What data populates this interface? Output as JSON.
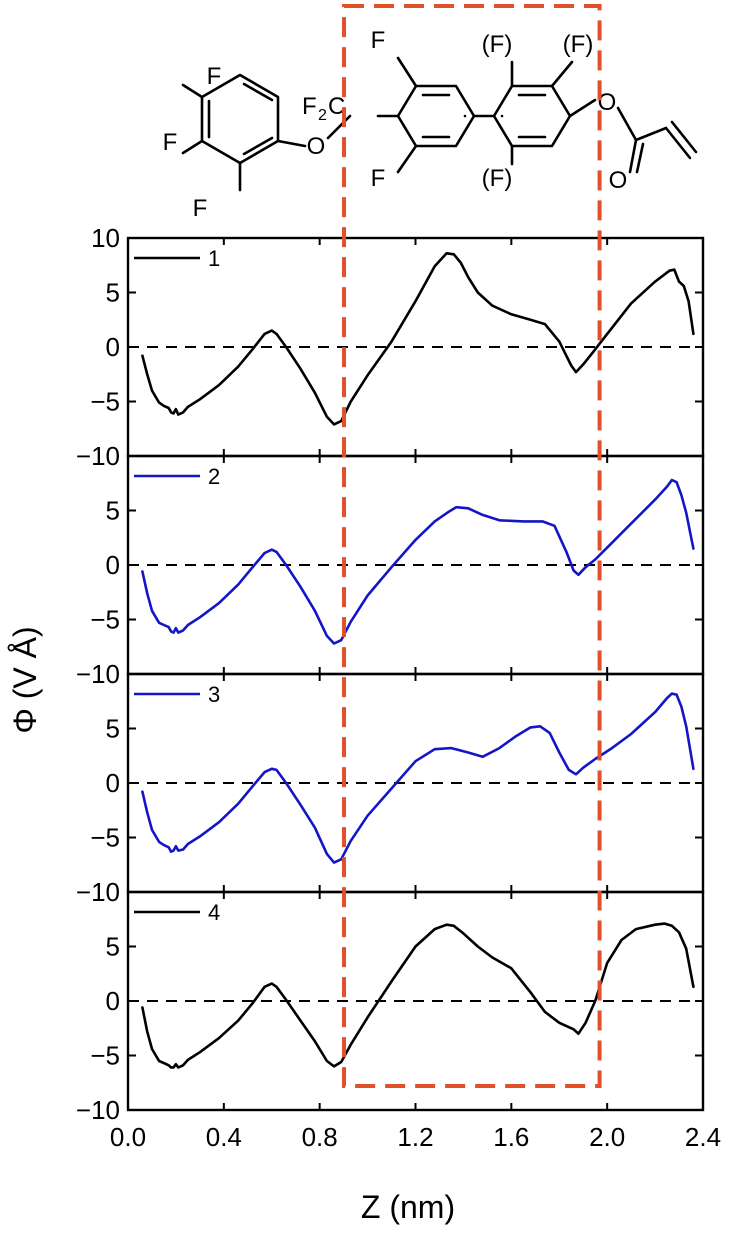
{
  "molecule": {
    "atoms": [
      "F",
      "F",
      "F",
      "O",
      "F",
      "C",
      "F",
      "F",
      "(F)",
      "(F)",
      "(F)",
      "O",
      "O"
    ]
  },
  "chart_data": {
    "type": "line",
    "xlabel": "Z (nm)",
    "ylabel": "Φ (V Å)",
    "xlim": [
      0.0,
      2.4
    ],
    "ylim": [
      -10,
      10
    ],
    "xticks": [
      "0.0",
      "0.4",
      "0.8",
      "1.2",
      "1.6",
      "2.0",
      "2.4"
    ],
    "yticks": [
      "10",
      "5",
      "0",
      "−5",
      "−10"
    ],
    "zero_line": "dashed",
    "highlight_region": {
      "x": [
        0.91,
        1.96
      ],
      "color": "#E0502A",
      "style": "dashed"
    },
    "panels": [
      {
        "label": "1",
        "color": "#000000",
        "x": [
          0.06,
          0.08,
          0.1,
          0.13,
          0.15,
          0.17,
          0.18,
          0.19,
          0.2,
          0.21,
          0.23,
          0.25,
          0.3,
          0.38,
          0.46,
          0.52,
          0.57,
          0.6,
          0.62,
          0.66,
          0.72,
          0.78,
          0.83,
          0.86,
          0.89,
          0.93,
          1.0,
          1.1,
          1.2,
          1.28,
          1.33,
          1.36,
          1.39,
          1.42,
          1.46,
          1.52,
          1.6,
          1.68,
          1.74,
          1.8,
          1.85,
          1.87,
          1.9,
          1.94,
          2.0,
          2.1,
          2.2,
          2.26,
          2.28,
          2.3,
          2.32,
          2.34,
          2.36
        ],
        "y": [
          -0.8,
          -2.5,
          -4.0,
          -5.1,
          -5.4,
          -5.6,
          -6.0,
          -6.1,
          -5.7,
          -6.2,
          -6.0,
          -5.5,
          -4.8,
          -3.5,
          -1.8,
          -0.2,
          1.2,
          1.5,
          1.2,
          0.0,
          -2.0,
          -4.2,
          -6.4,
          -7.1,
          -6.8,
          -5.0,
          -2.6,
          0.5,
          4.2,
          7.4,
          8.6,
          8.5,
          7.7,
          6.4,
          5.0,
          3.8,
          3.0,
          2.5,
          2.1,
          0.5,
          -1.7,
          -2.3,
          -1.6,
          -0.5,
          1.2,
          4.0,
          6.0,
          7.0,
          7.1,
          6.0,
          5.6,
          4.2,
          1.2
        ]
      },
      {
        "label": "2",
        "color": "#1515C8",
        "x": [
          0.06,
          0.08,
          0.1,
          0.13,
          0.15,
          0.17,
          0.18,
          0.19,
          0.2,
          0.21,
          0.23,
          0.25,
          0.3,
          0.38,
          0.46,
          0.52,
          0.57,
          0.6,
          0.62,
          0.66,
          0.72,
          0.78,
          0.83,
          0.86,
          0.89,
          0.93,
          1.0,
          1.1,
          1.2,
          1.28,
          1.34,
          1.37,
          1.42,
          1.48,
          1.55,
          1.65,
          1.73,
          1.78,
          1.83,
          1.86,
          1.88,
          1.91,
          1.95,
          2.0,
          2.1,
          2.2,
          2.25,
          2.27,
          2.29,
          2.31,
          2.33,
          2.36
        ],
        "y": [
          -0.6,
          -2.6,
          -4.2,
          -5.3,
          -5.5,
          -5.7,
          -6.1,
          -6.2,
          -5.8,
          -6.2,
          -6.0,
          -5.5,
          -4.8,
          -3.5,
          -1.8,
          -0.2,
          1.1,
          1.4,
          1.2,
          0.0,
          -2.0,
          -4.2,
          -6.5,
          -7.2,
          -6.9,
          -5.2,
          -2.8,
          -0.2,
          2.3,
          4.0,
          4.9,
          5.3,
          5.2,
          4.6,
          4.1,
          4.0,
          4.0,
          3.6,
          1.2,
          -0.5,
          -0.9,
          -0.2,
          0.5,
          1.6,
          3.8,
          6.0,
          7.2,
          7.8,
          7.6,
          6.4,
          4.8,
          1.5
        ]
      },
      {
        "label": "3",
        "color": "#1515C8",
        "x": [
          0.06,
          0.08,
          0.1,
          0.13,
          0.15,
          0.17,
          0.18,
          0.19,
          0.2,
          0.21,
          0.23,
          0.25,
          0.3,
          0.38,
          0.46,
          0.52,
          0.57,
          0.6,
          0.62,
          0.66,
          0.72,
          0.78,
          0.83,
          0.86,
          0.89,
          0.93,
          1.0,
          1.1,
          1.2,
          1.28,
          1.35,
          1.42,
          1.48,
          1.55,
          1.62,
          1.68,
          1.72,
          1.76,
          1.8,
          1.84,
          1.87,
          1.9,
          1.95,
          2.02,
          2.1,
          2.2,
          2.25,
          2.27,
          2.29,
          2.31,
          2.33,
          2.36
        ],
        "y": [
          -0.8,
          -2.7,
          -4.3,
          -5.4,
          -5.7,
          -5.9,
          -6.3,
          -6.2,
          -5.8,
          -6.2,
          -6.1,
          -5.6,
          -4.9,
          -3.6,
          -1.9,
          -0.3,
          1.0,
          1.3,
          1.2,
          0.0,
          -2.0,
          -4.1,
          -6.5,
          -7.3,
          -7.0,
          -5.3,
          -3.0,
          -0.5,
          2.0,
          3.1,
          3.2,
          2.8,
          2.4,
          3.2,
          4.3,
          5.1,
          5.2,
          4.6,
          2.8,
          1.2,
          0.8,
          1.4,
          2.2,
          3.2,
          4.5,
          6.5,
          7.8,
          8.2,
          8.1,
          7.0,
          5.2,
          1.3
        ]
      },
      {
        "label": "4",
        "color": "#000000",
        "x": [
          0.06,
          0.08,
          0.1,
          0.13,
          0.15,
          0.17,
          0.18,
          0.19,
          0.2,
          0.21,
          0.23,
          0.25,
          0.3,
          0.38,
          0.46,
          0.52,
          0.57,
          0.6,
          0.62,
          0.66,
          0.72,
          0.78,
          0.83,
          0.86,
          0.89,
          0.93,
          1.0,
          1.1,
          1.2,
          1.28,
          1.33,
          1.36,
          1.4,
          1.46,
          1.52,
          1.6,
          1.68,
          1.74,
          1.8,
          1.86,
          1.88,
          1.91,
          1.95,
          2.0,
          2.06,
          2.12,
          2.2,
          2.24,
          2.27,
          2.3,
          2.33,
          2.36
        ],
        "y": [
          -0.6,
          -2.8,
          -4.4,
          -5.5,
          -5.7,
          -5.9,
          -6.1,
          -6.1,
          -5.8,
          -6.1,
          -5.9,
          -5.4,
          -4.7,
          -3.4,
          -1.8,
          -0.2,
          1.3,
          1.6,
          1.3,
          0.1,
          -1.8,
          -3.7,
          -5.5,
          -6.0,
          -5.6,
          -4.0,
          -1.5,
          1.8,
          5.0,
          6.6,
          7.0,
          6.9,
          6.2,
          5.0,
          4.0,
          3.0,
          0.8,
          -1.0,
          -2.0,
          -2.6,
          -3.0,
          -2.0,
          0.0,
          3.5,
          5.6,
          6.6,
          7.0,
          7.1,
          6.9,
          6.3,
          4.8,
          1.3
        ]
      }
    ]
  }
}
